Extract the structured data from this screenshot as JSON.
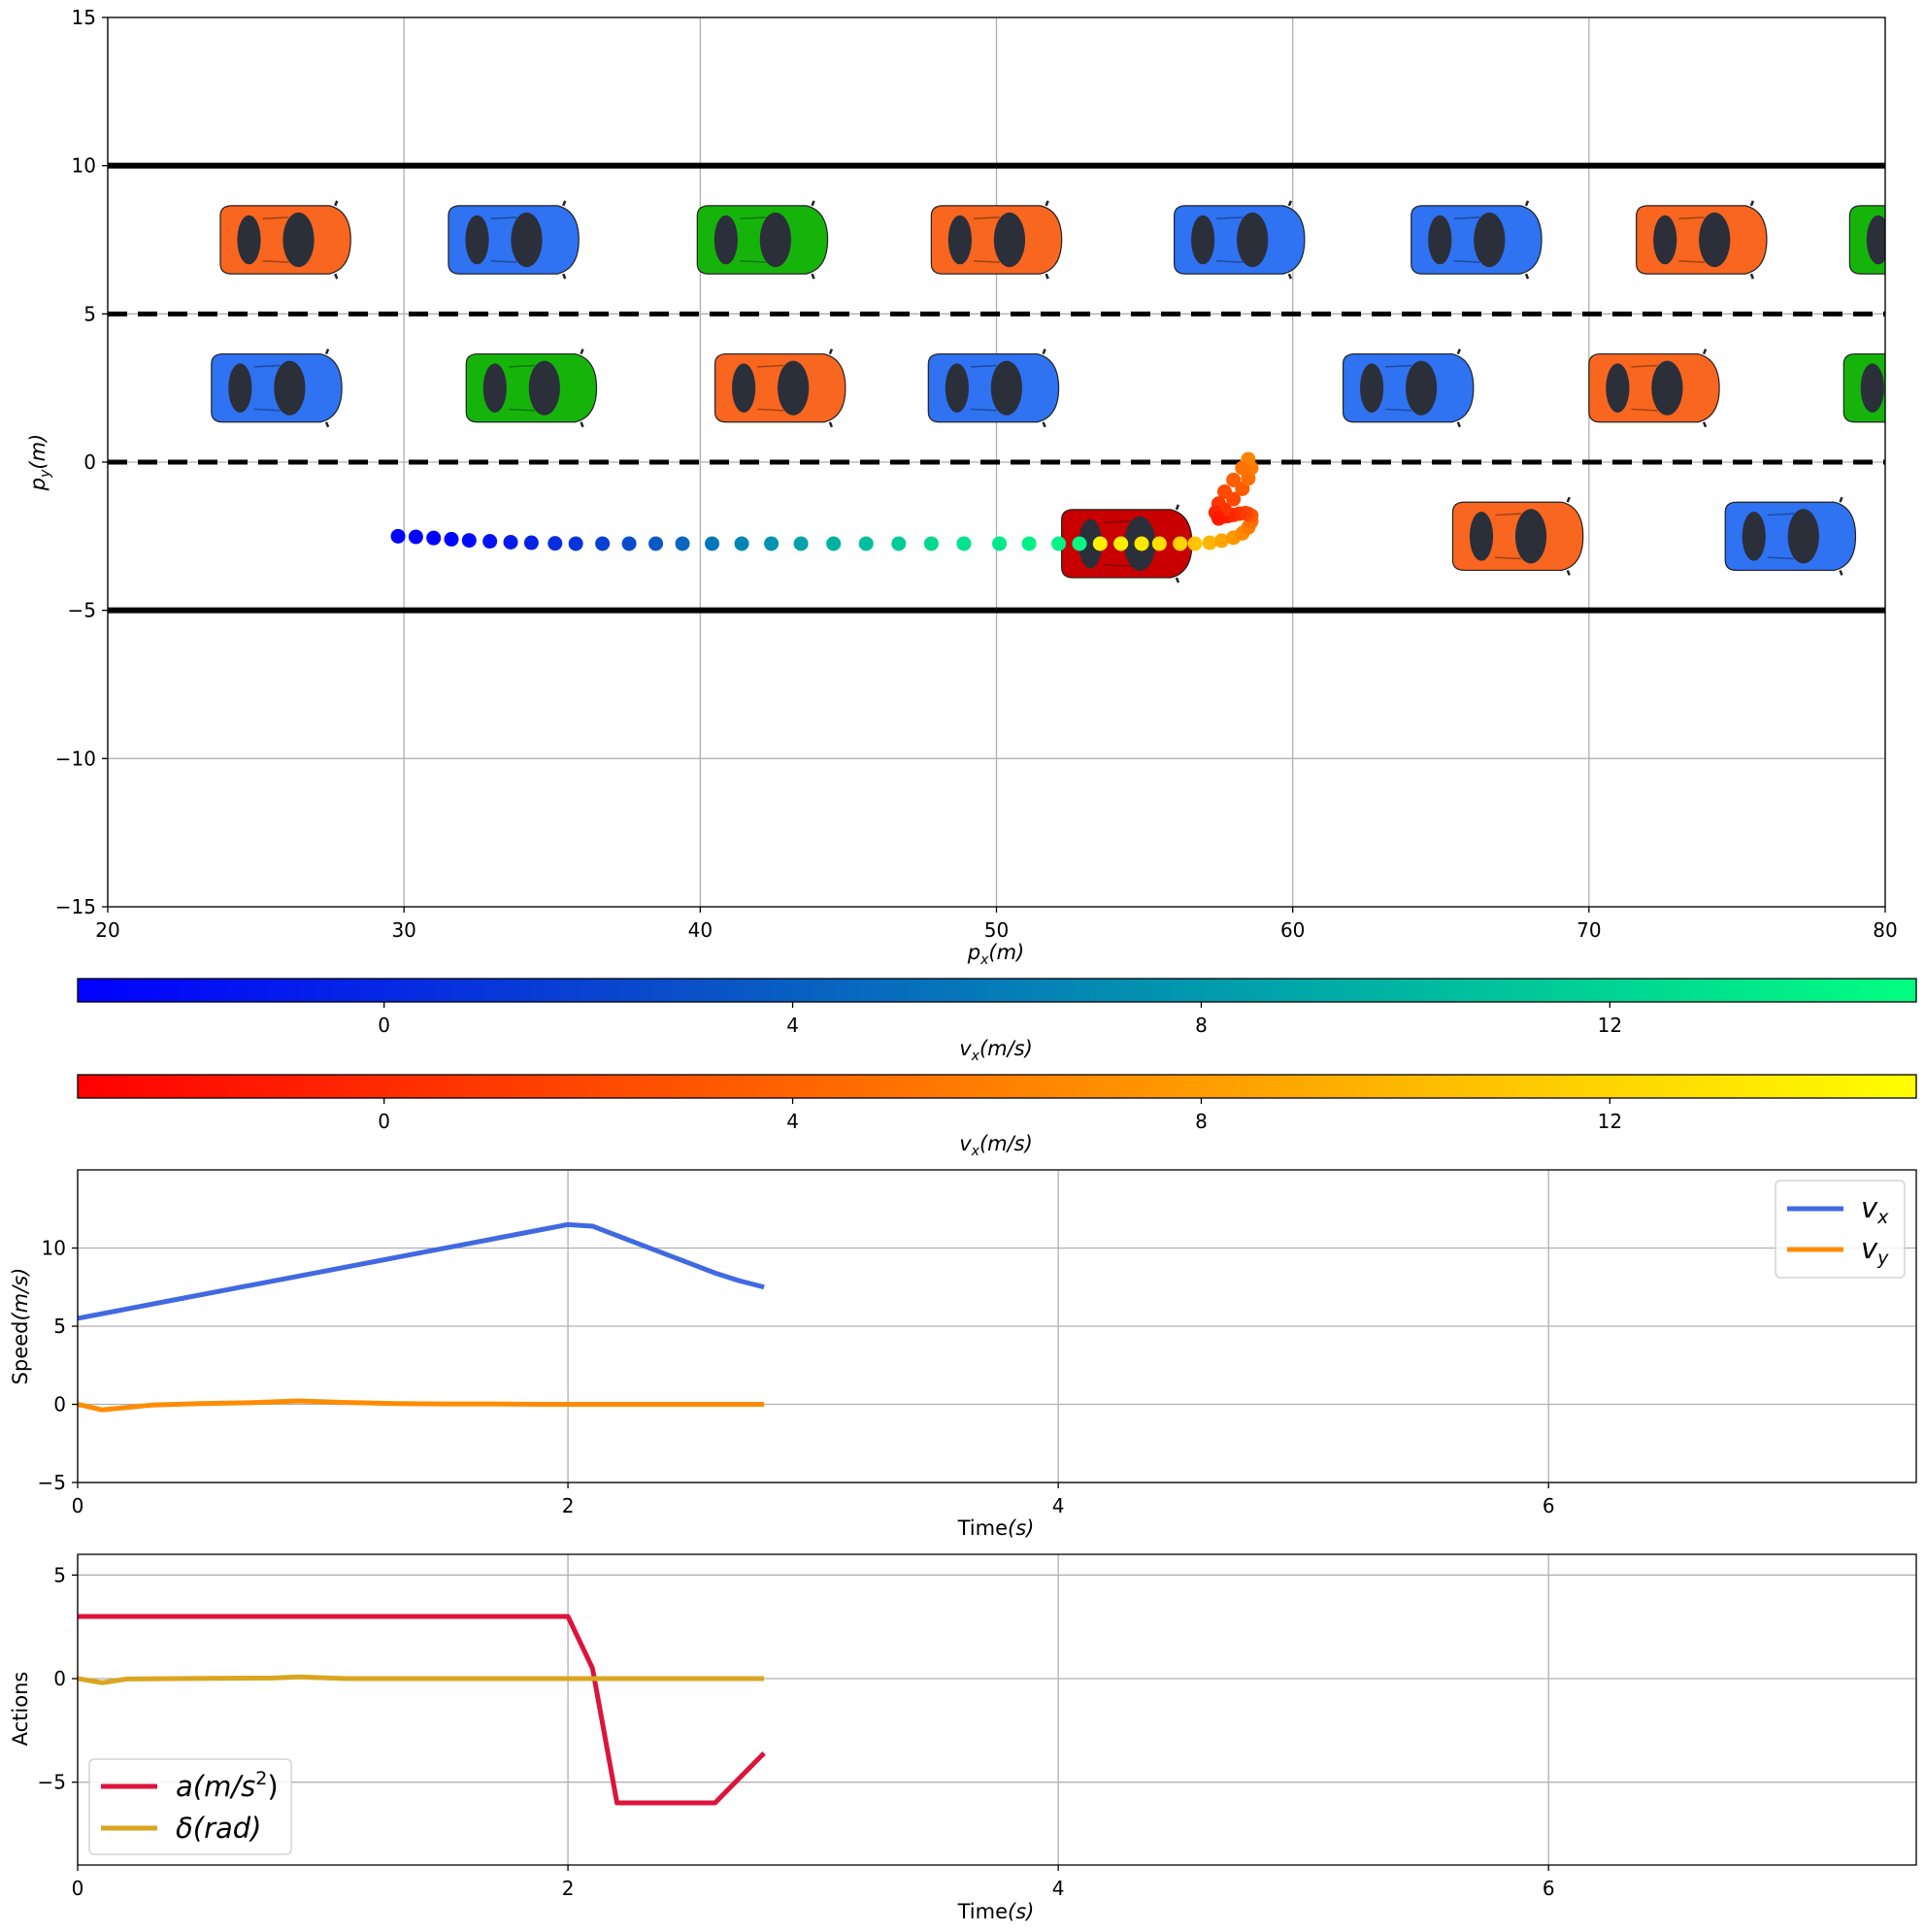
{
  "chart_data": [
    {
      "type": "scatter",
      "subplot": "trajectory",
      "xlabel_main": "p",
      "xlabel_sub": "x",
      "xlabel_unit": "(m)",
      "ylabel_main": "p",
      "ylabel_sub": "y",
      "ylabel_unit": "(m)",
      "xlim": [
        20,
        80
      ],
      "ylim": [
        -15,
        15
      ],
      "xticks": [
        20,
        30,
        40,
        50,
        60,
        70,
        80
      ],
      "yticks": [
        -15,
        -10,
        -5,
        0,
        5,
        10,
        15
      ],
      "xtick_labels": [
        "20",
        "30",
        "40",
        "50",
        "60",
        "70",
        "80"
      ],
      "ytick_labels": [
        "−15",
        "−10",
        "−5",
        "0",
        "5",
        "10",
        "15"
      ],
      "grid": true,
      "road_boundaries": [
        10,
        -5
      ],
      "lane_dividers": [
        5,
        0
      ],
      "colors": {
        "blue": "#2f72f2",
        "orange": "#f8661f",
        "green": "#16b40b",
        "ego": "#c80000"
      },
      "vehicles": [
        {
          "x": 26.0,
          "y": 7.5,
          "color": "orange"
        },
        {
          "x": 33.7,
          "y": 7.5,
          "color": "blue"
        },
        {
          "x": 42.1,
          "y": 7.5,
          "color": "green"
        },
        {
          "x": 50.0,
          "y": 7.5,
          "color": "orange"
        },
        {
          "x": 58.2,
          "y": 7.5,
          "color": "blue"
        },
        {
          "x": 66.2,
          "y": 7.5,
          "color": "blue"
        },
        {
          "x": 73.8,
          "y": 7.5,
          "color": "orange"
        },
        {
          "x": 81.0,
          "y": 7.5,
          "color": "green"
        },
        {
          "x": 25.7,
          "y": 2.5,
          "color": "blue"
        },
        {
          "x": 34.3,
          "y": 2.5,
          "color": "green"
        },
        {
          "x": 42.7,
          "y": 2.5,
          "color": "orange"
        },
        {
          "x": 49.9,
          "y": 2.5,
          "color": "blue"
        },
        {
          "x": 63.9,
          "y": 2.5,
          "color": "blue"
        },
        {
          "x": 72.2,
          "y": 2.5,
          "color": "orange"
        },
        {
          "x": 80.8,
          "y": 2.5,
          "color": "green"
        },
        {
          "x": 67.6,
          "y": -2.5,
          "color": "orange"
        },
        {
          "x": 76.8,
          "y": -2.5,
          "color": "blue"
        },
        {
          "x": 54.4,
          "y": -2.75,
          "color": "ego"
        }
      ],
      "trajectory_history": {
        "x": [
          29.8,
          30.4,
          31.0,
          31.6,
          32.2,
          32.9,
          33.6,
          34.3,
          35.1,
          35.8,
          36.7,
          37.6,
          38.5,
          39.4,
          40.4,
          41.4,
          42.4,
          43.4,
          44.5,
          45.6,
          46.7,
          47.8,
          48.9,
          50.1,
          51.1,
          52.1,
          52.8
        ],
        "y": [
          -2.5,
          -2.52,
          -2.56,
          -2.6,
          -2.64,
          -2.67,
          -2.7,
          -2.72,
          -2.74,
          -2.75,
          -2.75,
          -2.75,
          -2.75,
          -2.75,
          -2.75,
          -2.75,
          -2.75,
          -2.75,
          -2.75,
          -2.75,
          -2.75,
          -2.75,
          -2.75,
          -2.75,
          -2.75,
          -2.75,
          -2.75
        ],
        "vx": [
          -3.8,
          -3.4,
          -3.0,
          -2.6,
          -2.1,
          -1.6,
          -1.0,
          -0.4,
          0.3,
          1.0,
          1.8,
          2.7,
          3.6,
          4.6,
          5.6,
          6.6,
          7.6,
          8.6,
          9.6,
          10.6,
          11.5,
          12.3,
          13.0,
          13.5,
          13.9,
          14.2,
          14.5
        ]
      },
      "trajectory_prediction": {
        "x": [
          53.5,
          54.2,
          54.9,
          55.5,
          56.2,
          56.7,
          57.2,
          57.6,
          58.0,
          58.3,
          58.5,
          58.6,
          58.6,
          58.5,
          58.4,
          58.2,
          58.0,
          57.8,
          57.6,
          57.5,
          57.7,
          58.0,
          58.3,
          58.5,
          58.6,
          58.5,
          58.3,
          58.0,
          57.7,
          57.5,
          57.4,
          57.5
        ],
        "y": [
          -2.75,
          -2.75,
          -2.75,
          -2.75,
          -2.75,
          -2.75,
          -2.72,
          -2.65,
          -2.55,
          -2.4,
          -2.2,
          -2.0,
          -1.8,
          -1.75,
          -1.72,
          -1.74,
          -1.78,
          -1.82,
          -1.85,
          -1.85,
          -1.6,
          -1.25,
          -0.9,
          -0.55,
          -0.2,
          0.1,
          -0.2,
          -0.6,
          -1.0,
          -1.4,
          -1.7,
          -1.9
        ],
        "vx": [
          13.9,
          13.7,
          13.4,
          12.8,
          11.9,
          10.8,
          9.7,
          8.6,
          7.6,
          6.7,
          5.7,
          4.7,
          3.7,
          2.7,
          1.8,
          1.0,
          0.2,
          -0.5,
          -1.2,
          -1.8,
          0.6,
          2.0,
          3.4,
          4.6,
          5.6,
          6.3,
          5.0,
          3.6,
          2.2,
          0.8,
          -0.4,
          -1.3
        ]
      }
    },
    {
      "type": "colorbar",
      "label_main": "v",
      "label_sub": "x",
      "label_unit": "(m/s)",
      "range": [
        -3,
        15
      ],
      "ticks": [
        0,
        4,
        8,
        12
      ],
      "tick_labels": [
        "0",
        "4",
        "8",
        "12"
      ],
      "colors": [
        "#0000ff",
        "#0a50c8",
        "#00a8a8",
        "#00ff80"
      ]
    },
    {
      "type": "colorbar",
      "label_main": "v",
      "label_sub": "x",
      "label_unit": "(m/s)",
      "range": [
        -3,
        15
      ],
      "ticks": [
        0,
        4,
        8,
        12
      ],
      "tick_labels": [
        "0",
        "4",
        "8",
        "12"
      ],
      "colors": [
        "#ff0000",
        "#ff8000",
        "#ffff00"
      ]
    },
    {
      "type": "line",
      "subplot": "speed",
      "xlabel_main": "Time",
      "xlabel_unit": "(s)",
      "ylabel_main": "Speed",
      "ylabel_unit": "(m/s)",
      "xlim": [
        0,
        7.5
      ],
      "ylim": [
        -5,
        15
      ],
      "xticks": [
        0,
        2,
        4,
        6
      ],
      "yticks": [
        -5,
        0,
        5,
        10
      ],
      "xtick_labels": [
        "0",
        "2",
        "4",
        "6"
      ],
      "ytick_labels": [
        "−5",
        "0",
        "5",
        "10"
      ],
      "grid": true,
      "legend": "top-right",
      "series": [
        {
          "name_main": "v",
          "name_sub": "x",
          "color": "#4169e1",
          "x": [
            0,
            0.2,
            0.4,
            0.6,
            0.8,
            1.0,
            1.2,
            1.4,
            1.6,
            1.8,
            2.0,
            2.1,
            2.2,
            2.3,
            2.4,
            2.5,
            2.6,
            2.7,
            2.8
          ],
          "y": [
            5.5,
            6.1,
            6.7,
            7.3,
            7.9,
            8.5,
            9.1,
            9.7,
            10.3,
            10.9,
            11.5,
            11.4,
            10.8,
            10.2,
            9.6,
            9.0,
            8.4,
            7.9,
            7.5
          ]
        },
        {
          "name_main": "v",
          "name_sub": "y",
          "color": "#ff8c00",
          "x": [
            0,
            0.1,
            0.2,
            0.3,
            0.5,
            0.7,
            0.9,
            1.1,
            1.3,
            1.5,
            1.7,
            1.9,
            2.1,
            2.3,
            2.5,
            2.7,
            2.8
          ],
          "y": [
            0.0,
            -0.35,
            -0.2,
            -0.05,
            0.05,
            0.1,
            0.22,
            0.12,
            0.05,
            0.02,
            0.02,
            0.0,
            0.0,
            0.0,
            0.0,
            0.0,
            0.0
          ]
        }
      ]
    },
    {
      "type": "line",
      "subplot": "actions",
      "xlabel_main": "Time",
      "xlabel_unit": "(s)",
      "ylabel": "Actions",
      "xlim": [
        0,
        7.5
      ],
      "ylim": [
        -9,
        6
      ],
      "xticks": [
        0,
        2,
        4,
        6
      ],
      "yticks": [
        -5,
        0,
        5
      ],
      "xtick_labels": [
        "0",
        "2",
        "4",
        "6"
      ],
      "ytick_labels": [
        "−5",
        "0",
        "5"
      ],
      "grid": true,
      "legend": "bottom-left",
      "series": [
        {
          "name_main": "a",
          "name_unit_open": "(m/s",
          "name_sup": "2",
          "name_unit_close": ")",
          "color": "#dc143c",
          "x": [
            0,
            1.0,
            2.0,
            2.1,
            2.2,
            2.4,
            2.6,
            2.8
          ],
          "y": [
            3,
            3,
            3,
            0.5,
            -6,
            -6,
            -6,
            -3.6
          ]
        },
        {
          "name_main": "δ",
          "name_unit": "(rad)",
          "color": "#daa520",
          "x": [
            0,
            0.1,
            0.2,
            0.4,
            0.6,
            0.8,
            0.9,
            1.1,
            1.3,
            1.5,
            1.8,
            2.1,
            2.4,
            2.8
          ],
          "y": [
            0.0,
            -0.2,
            -0.02,
            0.0,
            0.02,
            0.03,
            0.08,
            0.0,
            0.0,
            0.0,
            0.0,
            0.0,
            0.0,
            0.0
          ]
        }
      ]
    }
  ]
}
